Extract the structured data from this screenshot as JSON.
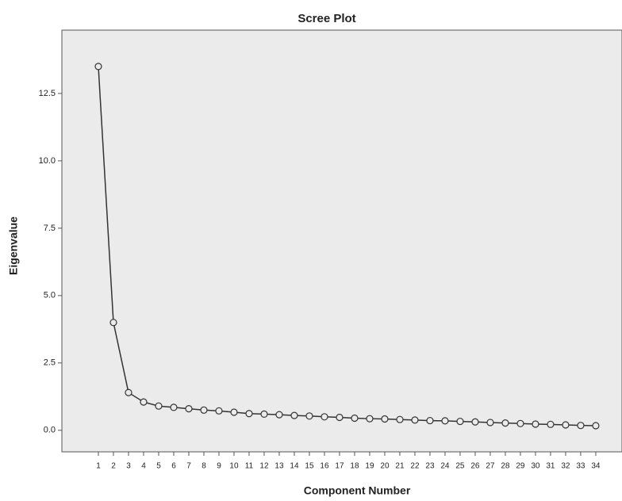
{
  "chart_data": {
    "type": "line",
    "title": "Scree Plot",
    "x_label": "Component Number",
    "y_label": "Eigenvalue",
    "x": [
      1,
      2,
      3,
      4,
      5,
      6,
      7,
      8,
      9,
      10,
      11,
      12,
      13,
      14,
      15,
      16,
      17,
      18,
      19,
      20,
      21,
      22,
      23,
      24,
      25,
      26,
      27,
      28,
      29,
      30,
      31,
      32,
      33,
      34
    ],
    "values": [
      13.5,
      4.0,
      1.4,
      1.05,
      0.9,
      0.85,
      0.8,
      0.75,
      0.72,
      0.67,
      0.62,
      0.6,
      0.58,
      0.55,
      0.53,
      0.5,
      0.48,
      0.45,
      0.43,
      0.42,
      0.4,
      0.38,
      0.36,
      0.35,
      0.33,
      0.31,
      0.29,
      0.27,
      0.25,
      0.23,
      0.22,
      0.2,
      0.18,
      0.17
    ],
    "color": "#333333",
    "xlim": [
      -1.42,
      35.74
    ],
    "xticks": [
      1,
      2,
      3,
      4,
      5,
      6,
      7,
      8,
      9,
      10,
      11,
      12,
      13,
      14,
      15,
      16,
      17,
      18,
      19,
      20,
      21,
      22,
      23,
      24,
      25,
      26,
      27,
      28,
      29,
      30,
      31,
      32,
      33,
      34
    ],
    "ylim": [
      -0.8,
      14.85
    ],
    "yticks": [
      {
        "value": 0,
        "label": "0.0"
      },
      2.5,
      {
        "value": 5,
        "label": "5.0"
      },
      7.5,
      {
        "value": 10,
        "label": "10.0"
      },
      12.5
    ],
    "grid": false
  }
}
